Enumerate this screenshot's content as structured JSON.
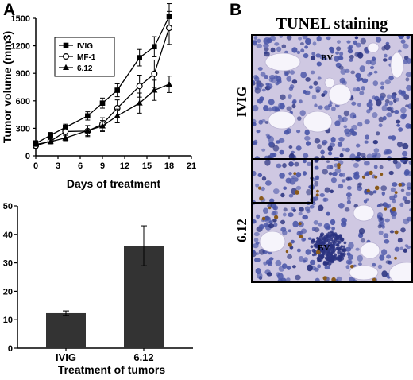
{
  "panels": {
    "a_letter": "A",
    "b_letter": "B"
  },
  "tunel": {
    "title": "TUNEL staining",
    "row_labels": [
      "IVIG",
      "6.12"
    ],
    "annotations": [
      "BV",
      "BV"
    ],
    "colors": {
      "background": "#cfc8e2",
      "nucleus": "#4a56a8",
      "nucleus_dark": "#2a3380",
      "apoptotic": "#8a5a1a",
      "vessel": "#f6f4fb",
      "frame": "#000000"
    }
  },
  "chart_data": [
    {
      "type": "line",
      "xlabel": "Days of treatment",
      "ylabel": "Tumor volume (mm3)",
      "xlim": [
        0,
        21
      ],
      "ylim": [
        0,
        1500
      ],
      "xticks": [
        0,
        3,
        6,
        9,
        12,
        15,
        18,
        21
      ],
      "yticks": [
        0,
        300,
        600,
        900,
        1200,
        1500
      ],
      "grid": false,
      "legend_position": "top-left",
      "series": [
        {
          "name": "IVIG",
          "marker": "square-filled",
          "x": [
            0,
            2,
            4,
            7,
            9,
            11,
            14,
            16,
            18
          ],
          "y": [
            135,
            225,
            310,
            435,
            575,
            715,
            1070,
            1190,
            1520
          ],
          "err": [
            30,
            30,
            35,
            45,
            55,
            70,
            90,
            110,
            140
          ]
        },
        {
          "name": "MF-1",
          "marker": "circle-open",
          "x": [
            0,
            2,
            4,
            7,
            9,
            11,
            14,
            16,
            18
          ],
          "y": [
            110,
            160,
            265,
            270,
            345,
            520,
            760,
            895,
            1395
          ],
          "err": [
            25,
            30,
            40,
            60,
            70,
            90,
            120,
            150,
            180
          ]
        },
        {
          "name": "6.12",
          "marker": "triangle-filled",
          "x": [
            0,
            2,
            4,
            7,
            9,
            11,
            14,
            16,
            18
          ],
          "y": [
            125,
            155,
            195,
            275,
            325,
            435,
            575,
            715,
            780
          ],
          "err": [
            20,
            25,
            30,
            55,
            60,
            75,
            110,
            110,
            90
          ]
        }
      ]
    },
    {
      "type": "bar",
      "xlabel": "Treatment of tumors",
      "ylabel": "",
      "ylim": [
        0,
        50
      ],
      "yticks": [
        0,
        10,
        20,
        30,
        40,
        50
      ],
      "grid": false,
      "categories": [
        "IVIG",
        "6.12"
      ],
      "values": [
        12.3,
        36
      ],
      "err": [
        0.8,
        7
      ],
      "bar_color": "#333333"
    }
  ]
}
